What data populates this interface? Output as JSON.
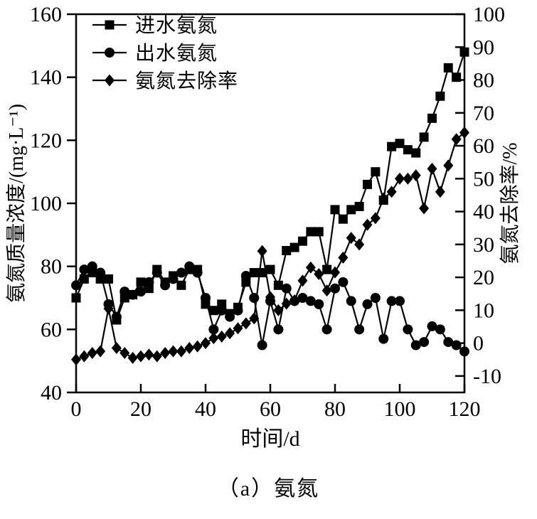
{
  "figure": {
    "background": "#ffffff",
    "ink": "#000000"
  },
  "caption": "（a）氨氮",
  "chart_data": {
    "type": "line",
    "title": "",
    "xlabel": "时间/d",
    "ylabel_left": "氨氮质量浓度/(mg·L⁻¹)",
    "ylabel_right": "氨氮去除率/%",
    "xlim": [
      0,
      120
    ],
    "xticks": [
      0,
      20,
      40,
      60,
      80,
      100,
      120
    ],
    "ylim_left": [
      40,
      160
    ],
    "yticks_left": [
      40,
      60,
      80,
      100,
      120,
      140,
      160
    ],
    "ylim_right": [
      -15,
      100
    ],
    "yticks_right": [
      -10,
      0,
      10,
      20,
      30,
      40,
      50,
      60,
      70,
      80,
      90,
      100
    ],
    "grid": false,
    "legend_position": "top-left-inside",
    "x": [
      0,
      2.5,
      5,
      7.5,
      10,
      12.5,
      15,
      17.5,
      20,
      22.5,
      25,
      27.5,
      30,
      32.5,
      35,
      37.5,
      40,
      42.5,
      45,
      47.5,
      50,
      52.5,
      55,
      57.5,
      60,
      62.5,
      65,
      67.5,
      70,
      72.5,
      75,
      77.5,
      80,
      82.5,
      85,
      87.5,
      90,
      92.5,
      95,
      97.5,
      100,
      102.5,
      105,
      107.5,
      110,
      112.5,
      115,
      117.5,
      120
    ],
    "series": [
      {
        "name": "进水氨氮",
        "marker": "square",
        "axis": "left",
        "color": "#000000",
        "values": [
          70,
          76,
          78,
          76,
          76,
          63,
          70,
          71,
          75,
          73,
          79,
          75,
          77,
          74,
          79,
          79,
          68,
          66,
          68,
          65,
          67,
          75,
          78,
          78,
          79,
          74,
          85,
          86,
          88,
          91,
          91,
          79,
          98,
          95,
          98,
          99,
          106,
          110,
          101,
          118,
          119,
          117,
          116,
          121,
          127,
          134,
          143,
          140,
          148
        ]
      },
      {
        "name": "出水氨氮",
        "marker": "circle",
        "axis": "left",
        "color": "#000000",
        "values": [
          74,
          79,
          80,
          78,
          68,
          64,
          72,
          71,
          72,
          75,
          78,
          74,
          76,
          78,
          80,
          78,
          70,
          60,
          66,
          64,
          66,
          77,
          70,
          55,
          69,
          60,
          73,
          69,
          70,
          69,
          68,
          60,
          73,
          75,
          69,
          60,
          68,
          70,
          57,
          69,
          69,
          60,
          55,
          56,
          61,
          60,
          56,
          55,
          53
        ]
      },
      {
        "name": "氨氮去除率",
        "marker": "diamond",
        "axis": "right",
        "color": "#000000",
        "values": [
          -5,
          -4,
          -3,
          -2.5,
          10.5,
          -1.5,
          -3,
          -4.5,
          -4,
          -3.5,
          -4,
          -3,
          -2.5,
          -2.5,
          -1.5,
          -1,
          0,
          1.5,
          2,
          3,
          4.5,
          6,
          7.5,
          28,
          14,
          10,
          12,
          13,
          19,
          23,
          21,
          16,
          21.5,
          26,
          32,
          30,
          36,
          38,
          44,
          46,
          50,
          50,
          51,
          41,
          53,
          46,
          54,
          62,
          64
        ]
      }
    ]
  }
}
